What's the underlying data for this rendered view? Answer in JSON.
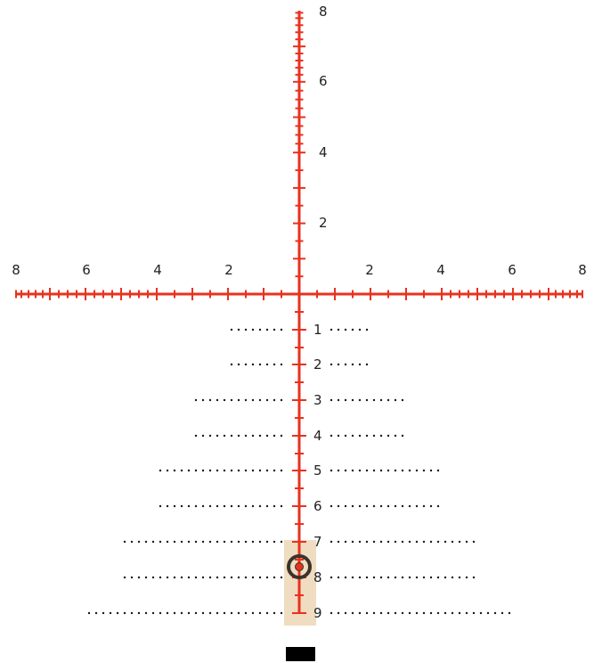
{
  "reticle": {
    "colors": {
      "line": "#e8321e",
      "dot": "#1a1a1a",
      "highlight": "#f0dcc0",
      "target_ring": "#3a332c",
      "marker": "#000000"
    },
    "top_labels": [
      "8",
      "6",
      "4",
      "2"
    ],
    "horizontal_left_labels": [
      "8",
      "6",
      "4",
      "2"
    ],
    "horizontal_right_labels": [
      "2",
      "4",
      "6",
      "8"
    ],
    "holdover_labels": [
      "1",
      "2",
      "3",
      "4",
      "5",
      "6",
      "7",
      "8",
      "9"
    ],
    "holdover_dot_extent": [
      2,
      2,
      3,
      3,
      4,
      4,
      5,
      5,
      6
    ],
    "highlight_rows": [
      "7",
      "8",
      "9"
    ],
    "target_row": "8",
    "icons": [
      "target-ring-icon",
      "bottom-marker-icon"
    ]
  }
}
